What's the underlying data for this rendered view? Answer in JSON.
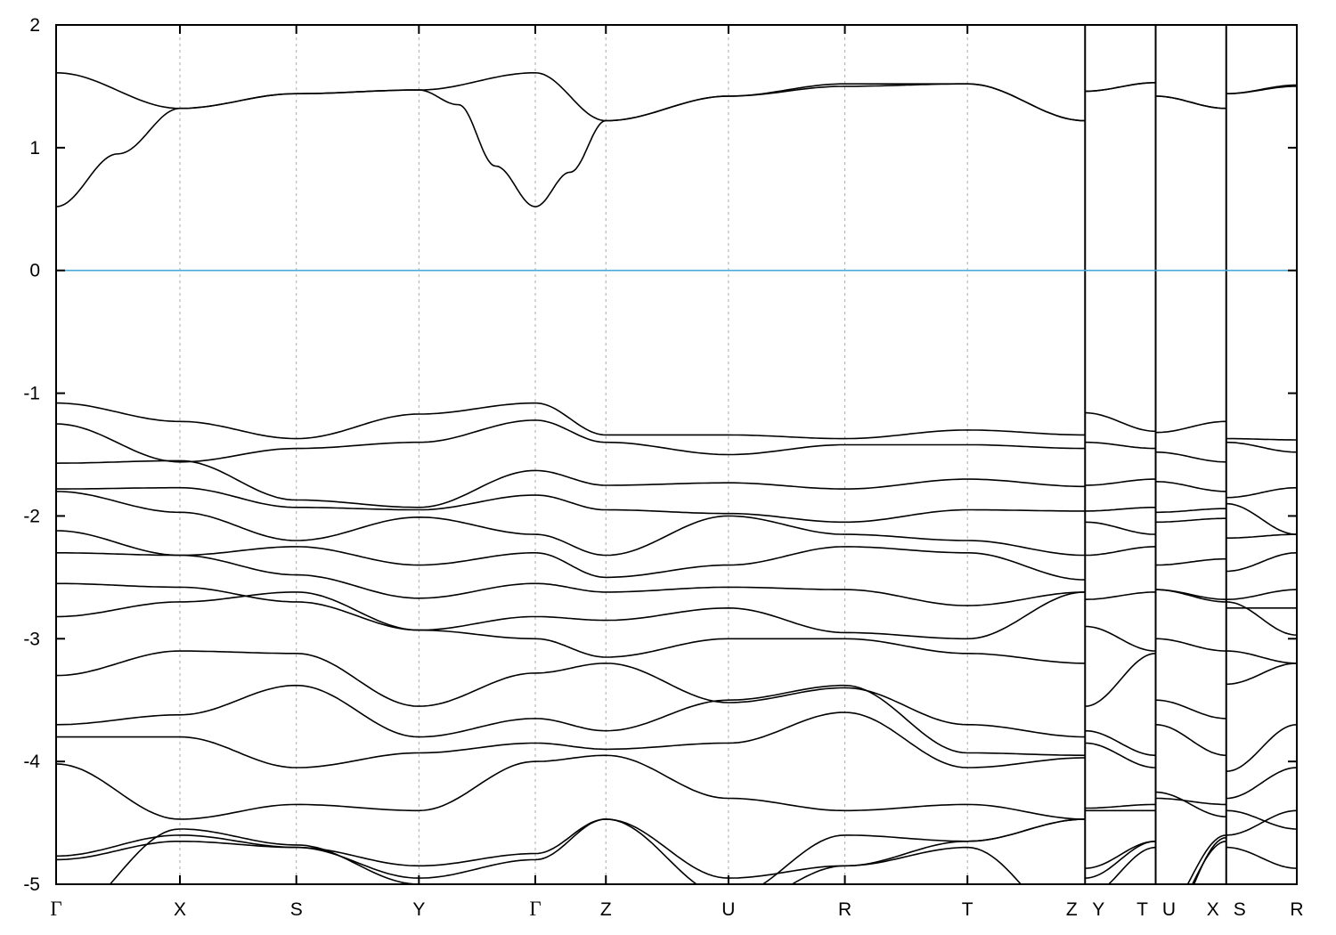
{
  "chart_data": {
    "type": "line",
    "title": "",
    "xlabel": "",
    "ylabel": "",
    "ylim": [
      -5,
      2
    ],
    "yticks": [
      "2",
      "1",
      "0",
      "-1",
      "-2",
      "-3",
      "-4",
      "-5"
    ],
    "ytick_values": [
      2,
      1,
      0,
      -1,
      -2,
      -3,
      -4,
      -5
    ],
    "grid": "vertical dashed lines at high-symmetry points",
    "fermi_level": {
      "energy": 0,
      "color": "#4aa8d8"
    },
    "band_color": "#000000",
    "kpath": {
      "labels": [
        "Γ",
        "X",
        "S",
        "Y",
        "Γ",
        "Z",
        "U",
        "R",
        "T",
        "Z",
        "Y",
        "T",
        "U",
        "X",
        "S",
        "R"
      ],
      "k": [
        0,
        1.0,
        1.94,
        2.93,
        3.87,
        4.44,
        5.43,
        6.37,
        7.36,
        8.31,
        8.31,
        8.88,
        8.88,
        9.45,
        9.45,
        10.02
      ],
      "segments": [
        [
          0,
          9
        ],
        [
          10,
          11
        ],
        [
          12,
          13
        ],
        [
          14,
          15
        ]
      ],
      "breaks_k": [
        8.31,
        8.88,
        9.45
      ]
    },
    "bands": [
      {
        "values": [
          0.52,
          1.32,
          1.44,
          1.47,
          0.52,
          1.22,
          1.42,
          1.5,
          1.52,
          1.22,
          1.46,
          1.53,
          1.42,
          1.32,
          1.44,
          1.5
        ],
        "extra": [
          [
            0.5,
            0.95
          ],
          [
            3.25,
            1.35
          ],
          [
            3.55,
            0.85
          ],
          [
            4.15,
            0.8
          ]
        ]
      },
      {
        "values": [
          1.61,
          1.32,
          1.44,
          1.47,
          1.61,
          1.22,
          1.42,
          1.52,
          1.52,
          1.22,
          1.46,
          1.53,
          1.42,
          1.32,
          1.44,
          1.51
        ]
      },
      {
        "values": [
          -1.08,
          -1.23,
          -1.37,
          -1.17,
          -1.08,
          -1.34,
          -1.34,
          -1.37,
          -1.3,
          -1.34,
          -1.16,
          -1.31,
          -1.32,
          -1.23,
          -1.37,
          -1.38
        ]
      },
      {
        "values": [
          -1.25,
          -1.56,
          -1.45,
          -1.4,
          -1.22,
          -1.4,
          -1.5,
          -1.42,
          -1.42,
          -1.45,
          -1.4,
          -1.45,
          -1.48,
          -1.56,
          -1.4,
          -1.48
        ]
      },
      {
        "values": [
          -1.57,
          -1.55,
          -1.87,
          -1.93,
          -1.63,
          -1.75,
          -1.73,
          -1.78,
          -1.7,
          -1.76,
          -1.75,
          -1.7,
          -1.72,
          -1.8,
          -1.85,
          -1.77
        ]
      },
      {
        "values": [
          -1.78,
          -1.77,
          -1.93,
          -1.95,
          -1.83,
          -1.95,
          -1.98,
          -2.05,
          -1.95,
          -1.96,
          -1.96,
          -1.93,
          -1.97,
          -1.94,
          -1.9,
          -2.15
        ]
      },
      {
        "values": [
          -1.8,
          -1.97,
          -2.2,
          -2.01,
          -2.15,
          -2.32,
          -2.0,
          -2.15,
          -2.2,
          -2.32,
          -2.05,
          -2.15,
          -2.05,
          -2.02,
          -2.18,
          -2.15
        ]
      },
      {
        "values": [
          -2.12,
          -2.32,
          -2.25,
          -2.4,
          -2.3,
          -2.5,
          -2.4,
          -2.25,
          -2.3,
          -2.52,
          -2.32,
          -2.25,
          -2.4,
          -2.35,
          -2.45,
          -2.3
        ]
      },
      {
        "values": [
          -2.3,
          -2.32,
          -2.48,
          -2.67,
          -2.55,
          -2.62,
          -2.58,
          -2.6,
          -2.73,
          -2.62,
          -2.68,
          -2.62,
          -2.6,
          -2.7,
          -2.68,
          -2.6
        ]
      },
      {
        "values": [
          -2.55,
          -2.58,
          -2.7,
          -2.93,
          -2.82,
          -2.85,
          -2.75,
          -2.95,
          -3.0,
          -2.62,
          -2.9,
          -3.1,
          -2.6,
          -2.68,
          -2.75,
          -2.75
        ]
      },
      {
        "values": [
          -2.82,
          -2.7,
          -2.62,
          -2.93,
          -3.0,
          -3.15,
          -3.0,
          -3.0,
          -3.12,
          -3.2,
          -3.55,
          -3.12,
          -3.0,
          -3.1,
          -2.7,
          -2.97
        ]
      },
      {
        "values": [
          -3.3,
          -3.1,
          -3.12,
          -3.55,
          -3.28,
          -3.2,
          -3.52,
          -3.4,
          -3.7,
          -3.8,
          -3.75,
          -3.95,
          -3.5,
          -3.65,
          -3.1,
          -3.2
        ]
      },
      {
        "values": [
          -3.7,
          -3.62,
          -3.38,
          -3.8,
          -3.65,
          -3.75,
          -3.5,
          -3.38,
          -3.93,
          -3.95,
          -3.85,
          -4.05,
          -3.7,
          -3.95,
          -3.37,
          -3.2
        ]
      },
      {
        "values": [
          -3.8,
          -3.8,
          -4.05,
          -3.93,
          -3.85,
          -3.9,
          -3.85,
          -3.6,
          -4.05,
          -3.97,
          -4.38,
          -4.35,
          -4.25,
          -4.45,
          -4.08,
          -3.7
        ]
      },
      {
        "values": [
          -4.02,
          -4.47,
          -4.35,
          -4.4,
          -4.0,
          -3.95,
          -4.3,
          -4.4,
          -4.35,
          -4.47,
          -4.4,
          -4.4,
          -4.3,
          -4.35,
          -4.3,
          -4.05
        ]
      },
      {
        "values": [
          -4.77,
          -4.6,
          -4.7,
          -4.85,
          -4.75,
          -4.47,
          -4.95,
          -4.85,
          -4.65,
          -4.47,
          -4.87,
          -4.65,
          -5.3,
          -4.6,
          -4.6,
          -4.4
        ]
      },
      {
        "values": [
          -4.8,
          -4.65,
          -4.7,
          -4.95,
          -4.8,
          -4.47,
          -5.1,
          -4.6,
          -4.65,
          -4.47,
          -4.95,
          -4.65,
          -5.4,
          -4.65,
          -4.7,
          -4.87
        ]
      },
      {
        "values": [
          -5.3,
          -4.55,
          -4.68,
          -5.0,
          -5.3,
          -5.3,
          -5.2,
          -4.85,
          -4.7,
          -5.4,
          -5.1,
          -4.7,
          -5.5,
          -4.62,
          -4.4,
          -4.55
        ]
      }
    ]
  }
}
